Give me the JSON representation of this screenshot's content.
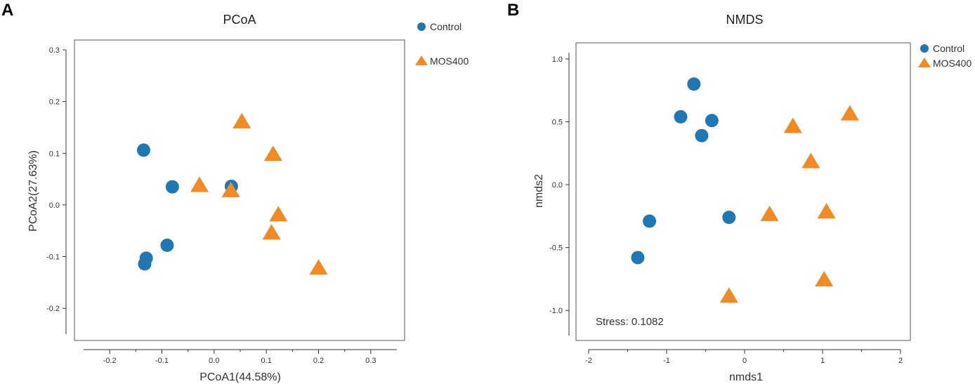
{
  "colors": {
    "control": "#1f77b4",
    "mos400": "#f28a24"
  },
  "chart_data": [
    {
      "type": "scatter",
      "panel_label": "A",
      "title": "PCoA",
      "xlabel": "PCoA1(44.58%)",
      "ylabel": "PCoA2(27.63%)",
      "xlim": [
        -0.25,
        0.35
      ],
      "ylim": [
        -0.25,
        0.3
      ],
      "xticks": [
        -0.2,
        -0.1,
        0.0,
        0.1,
        0.2,
        0.3
      ],
      "xtick_labels": [
        "-0.2",
        "-0.1",
        "0.0",
        "0.1",
        "0.2",
        "0.3"
      ],
      "yticks": [
        -0.2,
        -0.1,
        0.0,
        0.1,
        0.2,
        0.3
      ],
      "ytick_labels": [
        "-0.2",
        "-0.1",
        "0.0",
        "0.1",
        "0.2",
        "0.3"
      ],
      "legend": [
        "Control",
        "MOS400"
      ],
      "legend_position": "top-right outside",
      "series": [
        {
          "name": "Control",
          "marker": "circle",
          "points": [
            [
              -0.135,
              0.106
            ],
            [
              -0.08,
              0.035
            ],
            [
              0.033,
              0.036
            ],
            [
              -0.09,
              -0.078
            ],
            [
              -0.13,
              -0.103
            ],
            [
              -0.133,
              -0.114
            ]
          ]
        },
        {
          "name": "MOS400",
          "marker": "triangle",
          "points": [
            [
              0.053,
              0.16
            ],
            [
              0.113,
              0.097
            ],
            [
              -0.028,
              0.037
            ],
            [
              0.032,
              0.027
            ],
            [
              0.123,
              -0.02
            ],
            [
              0.11,
              -0.055
            ],
            [
              0.2,
              -0.123
            ]
          ]
        }
      ]
    },
    {
      "type": "scatter",
      "panel_label": "B",
      "title": "NMDS",
      "xlabel": "nmds1",
      "ylabel": "nmds2",
      "xlim": [
        -2,
        2
      ],
      "ylim": [
        -1.2,
        1.05
      ],
      "xticks": [
        -2,
        -1,
        0,
        1,
        2
      ],
      "xtick_labels": [
        "-2",
        "-1",
        "0",
        "1",
        "2"
      ],
      "yticks": [
        -1.0,
        -0.5,
        0.0,
        0.5,
        1.0
      ],
      "ytick_labels": [
        "-1.0",
        "-0.5",
        "0.0",
        "0.5",
        "1.0"
      ],
      "legend": [
        "Control",
        "MOS400"
      ],
      "legend_position": "top-right outside",
      "annotation": "Stress: 0.1082",
      "series": [
        {
          "name": "Control",
          "marker": "circle",
          "points": [
            [
              -0.65,
              0.8
            ],
            [
              -0.82,
              0.54
            ],
            [
              -0.42,
              0.51
            ],
            [
              -0.55,
              0.39
            ],
            [
              -1.22,
              -0.29
            ],
            [
              -0.2,
              -0.26
            ],
            [
              -1.37,
              -0.58
            ]
          ]
        },
        {
          "name": "MOS400",
          "marker": "triangle",
          "points": [
            [
              1.35,
              0.56
            ],
            [
              0.62,
              0.46
            ],
            [
              0.85,
              0.18
            ],
            [
              0.32,
              -0.24
            ],
            [
              1.05,
              -0.22
            ],
            [
              1.02,
              -0.76
            ],
            [
              -0.2,
              -0.89
            ]
          ]
        }
      ]
    }
  ]
}
